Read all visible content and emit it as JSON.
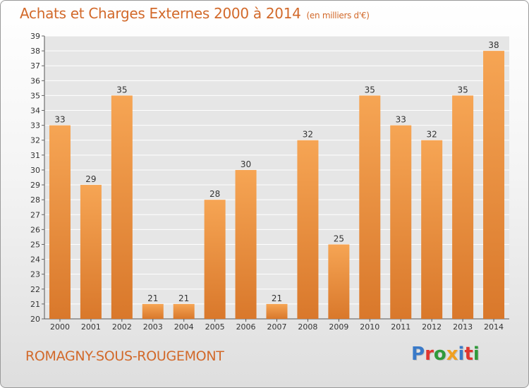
{
  "header": {
    "title": "Achats et Charges Externes 2000 à 2014",
    "unit": "(en milliers d'€)"
  },
  "footer": {
    "commune": "ROMAGNY-SOUS-ROUGEMONT",
    "logo_text": "Proxiti",
    "logo_colors": [
      "#3a7ac8",
      "#e0352f",
      "#2f9a3a",
      "#f0a020",
      "#3a7ac8",
      "#e0352f",
      "#2f9a3a"
    ]
  },
  "colors": {
    "title": "#d2692a",
    "bar_top": "#f6a554",
    "bar_bottom": "#d9782b",
    "grid": "#ffffff",
    "plot_bg": "#e6e6e6"
  },
  "chart_data": {
    "type": "bar",
    "categories": [
      "2000",
      "2001",
      "2002",
      "2003",
      "2004",
      "2005",
      "2006",
      "2007",
      "2008",
      "2009",
      "2010",
      "2011",
      "2012",
      "2013",
      "2014"
    ],
    "values": [
      33,
      29,
      35,
      21,
      21,
      28,
      30,
      21,
      32,
      25,
      35,
      33,
      32,
      35,
      38
    ],
    "ylim": [
      20,
      39
    ],
    "yticks": [
      20,
      21,
      22,
      23,
      24,
      25,
      26,
      27,
      28,
      29,
      30,
      31,
      32,
      33,
      34,
      35,
      36,
      37,
      38,
      39
    ],
    "grid": true,
    "legend": "none"
  }
}
